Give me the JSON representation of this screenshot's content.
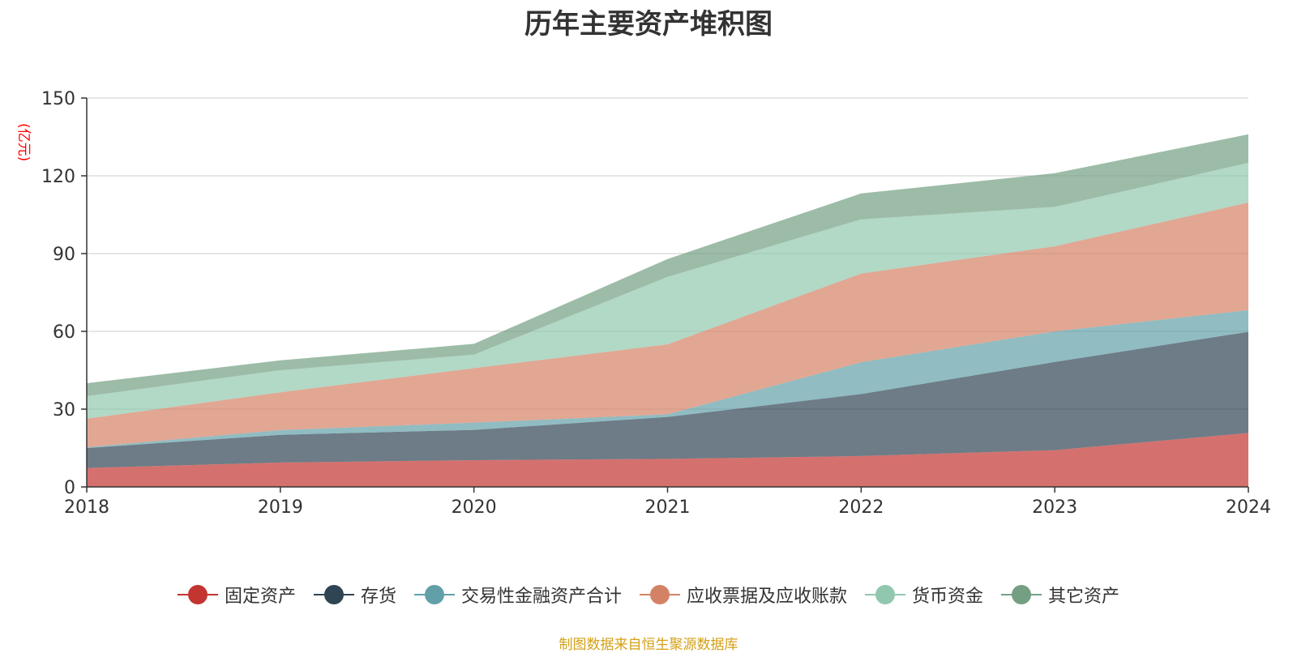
{
  "chart_data": {
    "type": "area",
    "stacked": true,
    "title": "历年主要资产堆积图",
    "unit_label": "(亿元)",
    "x": [
      "2018",
      "2019",
      "2020",
      "2021",
      "2022",
      "2023",
      "2024"
    ],
    "ylim": [
      0,
      150
    ],
    "yticks": [
      "0",
      "30",
      "60",
      "90",
      "120",
      "150"
    ],
    "grid": true,
    "legend_position": "bottom",
    "series": [
      {
        "name": "固定资产",
        "color": "#c23531",
        "values": [
          7.3,
          9.4,
          10.3,
          10.8,
          11.9,
          14.2,
          20.8
        ]
      },
      {
        "name": "存货",
        "color": "#2f4554",
        "values": [
          7.7,
          10.7,
          11.7,
          16.2,
          23.9,
          34.0,
          39.0
        ]
      },
      {
        "name": "交易性金融资产合计",
        "color": "#61a0a8",
        "values": [
          0.3,
          1.8,
          2.8,
          1.0,
          12.3,
          11.8,
          8.4
        ]
      },
      {
        "name": "应收票据及应收账款",
        "color": "#d48265",
        "values": [
          11.0,
          14.6,
          21.0,
          27.0,
          34.2,
          32.8,
          41.5
        ]
      },
      {
        "name": "货币资金",
        "color": "#91c7ae",
        "values": [
          8.7,
          8.5,
          5.2,
          26.0,
          20.9,
          15.2,
          15.3
        ]
      },
      {
        "name": "其它资产",
        "color": "#749f83",
        "values": [
          5.0,
          3.8,
          4.2,
          6.9,
          10.0,
          13.0,
          11.0
        ]
      }
    ]
  },
  "source_note": "制图数据来自恒生聚源数据库",
  "colors": {
    "unit_label": "#ff0000",
    "source_note": "#d4a017",
    "axis": "#333333",
    "grid": "#cccccc",
    "tick_text": "#333333"
  }
}
